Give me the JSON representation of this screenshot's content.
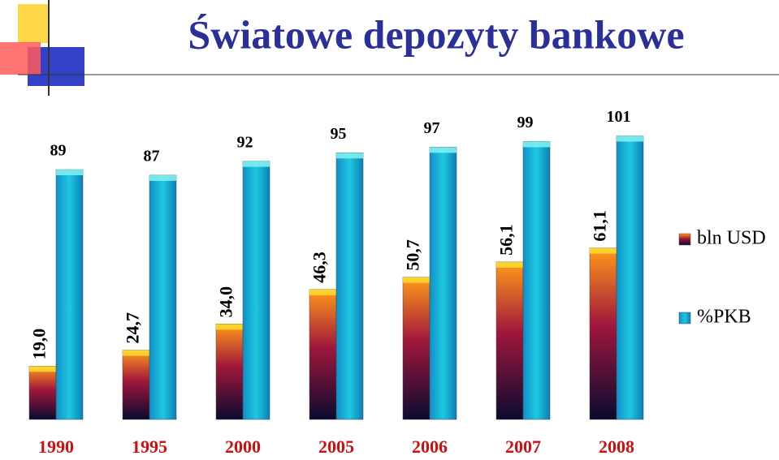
{
  "chart_data": {
    "type": "bar",
    "title": "Światowe depozyty bankowe",
    "categories": [
      "1990",
      "1995",
      "2000",
      "2005",
      "2006",
      "2007",
      "2008"
    ],
    "series": [
      {
        "name": "bln USD",
        "color": "#a0163c",
        "values": [
          19.0,
          24.7,
          34.0,
          46.3,
          50.7,
          56.1,
          61.1
        ],
        "value_labels": [
          "19,0",
          "24,7",
          "34,0",
          "46,3",
          "50,7",
          "56,1",
          "61,1"
        ]
      },
      {
        "name": "%PKB",
        "color": "#1ec8e0",
        "values": [
          89,
          87,
          92,
          95,
          97,
          99,
          101
        ]
      }
    ]
  }
}
